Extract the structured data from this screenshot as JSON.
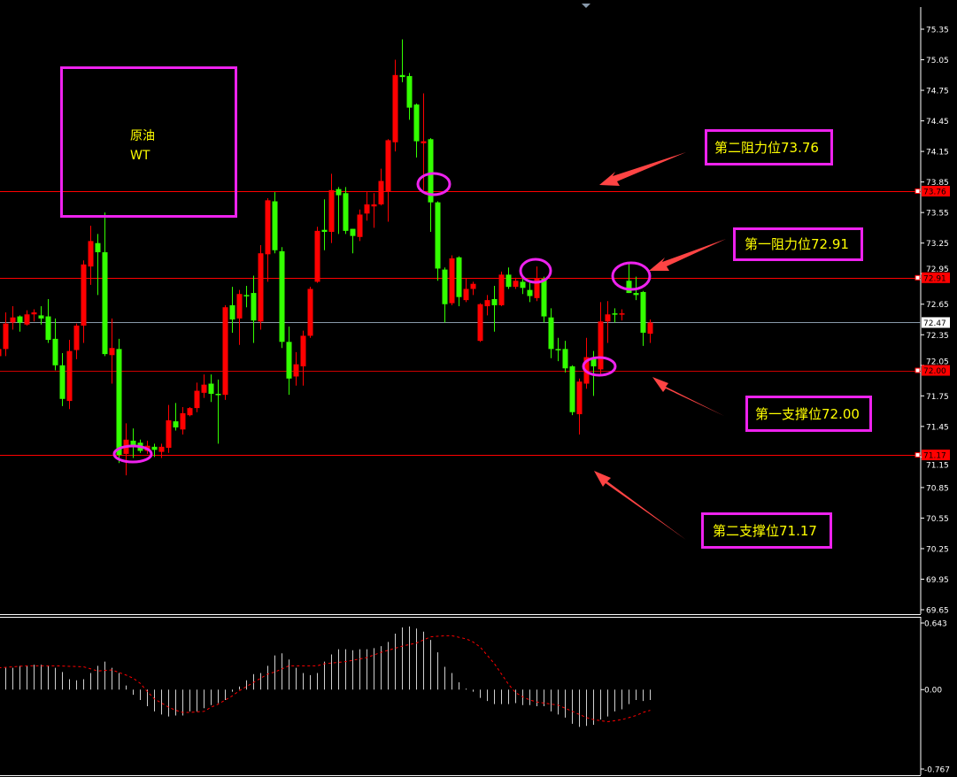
{
  "title_box": {
    "line1": "原油",
    "line2": "WT"
  },
  "annotations": [
    {
      "text": "第二阻力位73.76",
      "level": 73.76
    },
    {
      "text": "第一阻力位72.91",
      "level": 72.91
    },
    {
      "text": "第一支撑位72.00",
      "level": 72.0
    },
    {
      "text": "第二支撑位71.17",
      "level": 71.17
    }
  ],
  "price_tags": [
    {
      "text": "73.76",
      "value": 73.76,
      "bg": "#ff0000",
      "fg": "#000000"
    },
    {
      "text": "72.91",
      "value": 72.91,
      "bg": "#ff0000",
      "fg": "#000000"
    },
    {
      "text": "72.47",
      "value": 72.47,
      "bg": "#ffffff",
      "fg": "#000000"
    },
    {
      "text": "72.00",
      "value": 72.0,
      "bg": "#ff0000",
      "fg": "#000000"
    },
    {
      "text": "71.17",
      "value": 71.17,
      "bg": "#ff0000",
      "fg": "#000000"
    }
  ],
  "colors": {
    "up": "#ff0000",
    "down": "#33ff00",
    "level_line": "#ff0000",
    "bid_line": "#8899aa",
    "annotation_box": "#ee22ee",
    "annotation_text": "#ffff00",
    "arrow": "#ff4444",
    "histogram": "#d0d0d0",
    "signal": "#ff0000"
  },
  "chart_data": [
    {
      "type": "candlestick",
      "ylim": [
        69.65,
        75.35
      ],
      "y_ticks": [
        "75.35",
        "75.05",
        "74.75",
        "74.45",
        "74.15",
        "73.85",
        "73.55",
        "73.25",
        "72.95",
        "72.65",
        "72.35",
        "72.05",
        "71.75",
        "71.45",
        "71.15",
        "70.85",
        "70.55",
        "70.25",
        "69.95",
        "69.65"
      ],
      "horizontal_lines": [
        73.76,
        72.91,
        72.47,
        72.0,
        71.17
      ],
      "ohlc": [
        [
          72.14,
          72.24,
          72.08,
          72.21
        ],
        [
          72.21,
          72.57,
          72.14,
          72.46
        ],
        [
          72.47,
          72.63,
          72.4,
          72.52
        ],
        [
          72.53,
          72.54,
          72.38,
          72.47
        ],
        [
          72.45,
          72.59,
          72.44,
          72.55
        ],
        [
          72.55,
          72.6,
          72.48,
          72.57
        ],
        [
          72.54,
          72.63,
          72.45,
          72.51
        ],
        [
          72.53,
          72.7,
          72.27,
          72.3
        ],
        [
          72.31,
          72.51,
          72.0,
          72.05
        ],
        [
          72.05,
          72.17,
          71.65,
          71.72
        ],
        [
          71.7,
          72.3,
          71.62,
          72.19
        ],
        [
          72.2,
          72.46,
          72.11,
          72.44
        ],
        [
          72.44,
          73.08,
          72.27,
          73.04
        ],
        [
          73.02,
          73.42,
          72.84,
          73.27
        ],
        [
          73.25,
          73.34,
          72.74,
          73.16
        ],
        [
          73.16,
          73.55,
          72.14,
          72.16
        ],
        [
          72.15,
          72.51,
          71.87,
          72.22
        ],
        [
          72.21,
          72.31,
          71.09,
          71.17
        ],
        [
          71.18,
          71.48,
          70.97,
          71.32
        ],
        [
          71.31,
          71.43,
          71.14,
          71.26
        ],
        [
          71.29,
          71.32,
          71.19,
          71.21
        ],
        [
          71.21,
          71.31,
          71.18,
          71.26
        ],
        [
          71.25,
          71.28,
          71.15,
          71.22
        ],
        [
          71.2,
          71.28,
          71.14,
          71.25
        ],
        [
          71.24,
          71.66,
          71.19,
          71.51
        ],
        [
          71.5,
          71.68,
          71.41,
          71.44
        ],
        [
          71.42,
          71.64,
          71.37,
          71.58
        ],
        [
          71.56,
          71.64,
          71.55,
          71.63
        ],
        [
          71.63,
          71.88,
          71.59,
          71.8
        ],
        [
          71.78,
          71.96,
          71.73,
          71.86
        ],
        [
          71.87,
          71.96,
          71.69,
          71.77
        ],
        [
          71.77,
          71.91,
          71.28,
          71.76
        ],
        [
          71.76,
          72.64,
          71.71,
          72.62
        ],
        [
          72.64,
          72.82,
          72.37,
          72.5
        ],
        [
          72.51,
          72.79,
          72.25,
          72.75
        ],
        [
          72.74,
          72.83,
          72.62,
          72.73
        ],
        [
          72.76,
          72.93,
          72.27,
          72.49
        ],
        [
          72.48,
          73.23,
          72.4,
          73.15
        ],
        [
          73.14,
          73.69,
          72.87,
          73.67
        ],
        [
          73.66,
          73.75,
          73.15,
          73.18
        ],
        [
          73.17,
          73.21,
          72.22,
          72.28
        ],
        [
          72.28,
          72.43,
          71.76,
          71.92
        ],
        [
          71.94,
          72.18,
          71.85,
          72.06
        ],
        [
          72.04,
          72.39,
          71.85,
          72.34
        ],
        [
          72.34,
          72.82,
          72.32,
          72.8
        ],
        [
          72.87,
          73.41,
          72.86,
          73.37
        ],
        [
          73.38,
          73.68,
          73.18,
          73.36
        ],
        [
          73.36,
          73.93,
          73.25,
          73.77
        ],
        [
          73.78,
          73.8,
          73.34,
          73.72
        ],
        [
          73.74,
          73.8,
          73.34,
          73.37
        ],
        [
          73.39,
          73.39,
          73.15,
          73.32
        ],
        [
          73.31,
          73.58,
          73.27,
          73.53
        ],
        [
          73.54,
          73.75,
          73.47,
          73.63
        ],
        [
          73.61,
          73.74,
          73.4,
          73.63
        ],
        [
          73.63,
          73.98,
          73.62,
          73.86
        ],
        [
          73.76,
          74.27,
          73.46,
          74.26
        ],
        [
          74.24,
          75.05,
          74.15,
          74.9
        ],
        [
          74.9,
          75.25,
          74.83,
          74.88
        ],
        [
          74.89,
          74.92,
          74.46,
          74.58
        ],
        [
          74.61,
          74.62,
          74.09,
          74.25
        ],
        [
          74.23,
          74.72,
          73.77,
          74.25
        ],
        [
          74.27,
          74.28,
          73.36,
          73.65
        ],
        [
          73.65,
          73.66,
          72.88,
          73.0
        ],
        [
          72.99,
          73.01,
          72.47,
          72.65
        ],
        [
          72.66,
          73.13,
          72.64,
          73.1
        ],
        [
          73.11,
          73.12,
          72.63,
          72.72
        ],
        [
          72.69,
          72.9,
          72.67,
          72.8
        ],
        [
          72.8,
          72.87,
          72.74,
          72.85
        ],
        [
          72.29,
          72.66,
          72.28,
          72.65
        ],
        [
          72.63,
          72.74,
          72.54,
          72.69
        ],
        [
          72.7,
          72.83,
          72.38,
          72.64
        ],
        [
          72.64,
          72.97,
          72.63,
          72.94
        ],
        [
          72.94,
          73.01,
          72.8,
          72.82
        ],
        [
          72.82,
          72.91,
          72.8,
          72.88
        ],
        [
          72.87,
          72.9,
          72.75,
          72.81
        ],
        [
          72.79,
          72.87,
          72.67,
          72.73
        ],
        [
          72.71,
          73.02,
          72.68,
          72.9
        ],
        [
          72.9,
          72.92,
          72.47,
          72.53
        ],
        [
          72.52,
          72.61,
          72.12,
          72.21
        ],
        [
          72.21,
          72.32,
          72.09,
          72.2
        ],
        [
          72.21,
          72.29,
          71.98,
          72.02
        ],
        [
          72.04,
          72.05,
          71.56,
          71.59
        ],
        [
          71.57,
          71.92,
          71.37,
          71.89
        ],
        [
          71.87,
          72.32,
          71.82,
          72.13
        ],
        [
          72.12,
          72.19,
          71.75,
          72.04
        ],
        [
          72.01,
          72.67,
          71.96,
          72.48
        ],
        [
          72.48,
          72.68,
          72.27,
          72.55
        ],
        [
          72.56,
          72.61,
          72.47,
          72.55
        ],
        [
          72.56,
          72.6,
          72.49,
          72.56
        ],
        [
          72.88,
          73.06,
          72.76,
          72.76
        ],
        [
          72.76,
          72.92,
          72.69,
          72.74
        ],
        [
          72.77,
          72.78,
          72.24,
          72.37
        ],
        [
          72.36,
          72.5,
          72.27,
          72.47
        ]
      ]
    },
    {
      "type": "bar",
      "ylim": [
        -0.767,
        0.643
      ],
      "y_ticks": [
        "0.643",
        "0.00",
        "-0.767"
      ],
      "histogram": [
        0.21,
        0.21,
        0.21,
        0.23,
        0.23,
        0.24,
        0.24,
        0.23,
        0.21,
        0.17,
        0.1,
        0.09,
        0.1,
        0.16,
        0.23,
        0.27,
        0.21,
        0.16,
        0.04,
        -0.05,
        -0.1,
        -0.16,
        -0.21,
        -0.24,
        -0.26,
        -0.25,
        -0.25,
        -0.21,
        -0.21,
        -0.18,
        -0.15,
        -0.13,
        -0.1,
        -0.02,
        0.03,
        0.09,
        0.15,
        0.16,
        0.23,
        0.33,
        0.35,
        0.29,
        0.21,
        0.16,
        0.14,
        0.16,
        0.27,
        0.34,
        0.39,
        0.39,
        0.38,
        0.39,
        0.39,
        0.4,
        0.42,
        0.46,
        0.54,
        0.6,
        0.61,
        0.59,
        0.56,
        0.48,
        0.36,
        0.22,
        0.16,
        0.07,
        0.01,
        -0.02,
        -0.08,
        -0.11,
        -0.14,
        -0.14,
        -0.14,
        -0.13,
        -0.15,
        -0.15,
        -0.16,
        -0.16,
        -0.21,
        -0.24,
        -0.27,
        -0.33,
        -0.36,
        -0.35,
        -0.34,
        -0.29,
        -0.26,
        -0.21,
        -0.19,
        -0.14,
        -0.1,
        -0.11,
        -0.1
      ],
      "signal": [
        [
          1,
          0.21
        ],
        [
          5,
          0.23
        ],
        [
          9,
          0.23
        ],
        [
          13,
          0.22
        ],
        [
          15,
          0.18
        ],
        [
          17,
          0.19
        ],
        [
          19,
          0.14
        ],
        [
          20,
          0.11
        ],
        [
          21,
          0.06
        ],
        [
          22,
          -0.02
        ],
        [
          23,
          -0.09
        ],
        [
          24,
          -0.13
        ],
        [
          25,
          -0.17
        ],
        [
          26,
          -0.2
        ],
        [
          27,
          -0.22
        ],
        [
          28,
          -0.22
        ],
        [
          30,
          -0.21
        ],
        [
          31,
          -0.17
        ],
        [
          32,
          -0.14
        ],
        [
          33,
          -0.1
        ],
        [
          34,
          -0.06
        ],
        [
          35,
          -0.01
        ],
        [
          36,
          0.03
        ],
        [
          37,
          0.07
        ],
        [
          38,
          0.11
        ],
        [
          39,
          0.15
        ],
        [
          40,
          0.17
        ],
        [
          41,
          0.2
        ],
        [
          42,
          0.23
        ],
        [
          46,
          0.23
        ],
        [
          47,
          0.25
        ],
        [
          50,
          0.27
        ],
        [
          53,
          0.31
        ],
        [
          55,
          0.36
        ],
        [
          58,
          0.42
        ],
        [
          60,
          0.45
        ],
        [
          61,
          0.48
        ],
        [
          62,
          0.51
        ],
        [
          64,
          0.52
        ],
        [
          65,
          0.52
        ],
        [
          67,
          0.49
        ],
        [
          68,
          0.46
        ],
        [
          69,
          0.41
        ],
        [
          71,
          0.25
        ],
        [
          72,
          0.15
        ],
        [
          73,
          0.05
        ],
        [
          74,
          -0.03
        ],
        [
          75,
          -0.07
        ],
        [
          76,
          -0.1
        ],
        [
          77,
          -0.12
        ],
        [
          79,
          -0.14
        ],
        [
          80,
          -0.15
        ],
        [
          81,
          -0.18
        ],
        [
          82,
          -0.21
        ],
        [
          83,
          -0.24
        ],
        [
          84,
          -0.27
        ],
        [
          85,
          -0.29
        ],
        [
          86,
          -0.3
        ],
        [
          87,
          -0.31
        ],
        [
          88,
          -0.3
        ],
        [
          89,
          -0.29
        ],
        [
          90,
          -0.27
        ],
        [
          91,
          -0.25
        ],
        [
          92,
          -0.22
        ],
        [
          93,
          -0.2
        ]
      ]
    }
  ]
}
